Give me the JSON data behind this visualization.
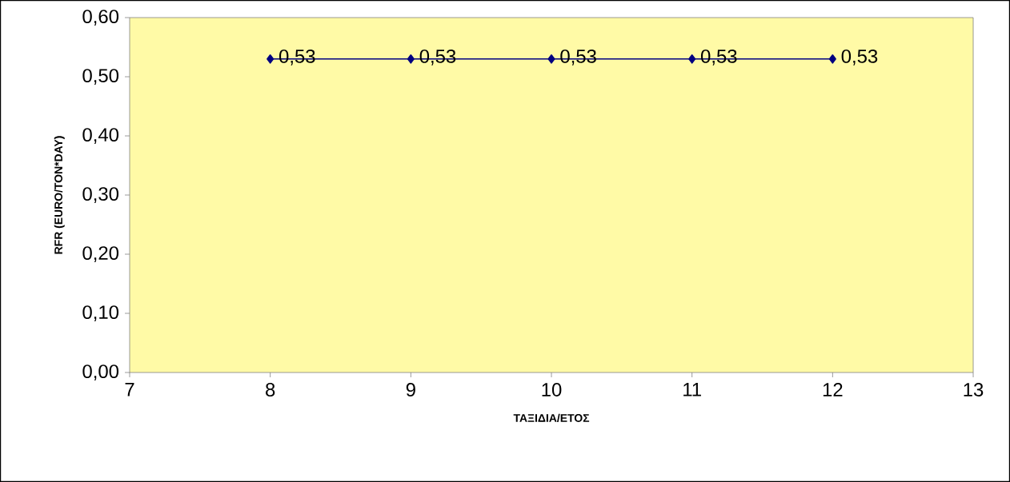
{
  "chart_data": {
    "type": "line",
    "xlabel": "ΤΑΞΙΔΙΑ/ΕΤΟΣ",
    "ylabel": "RFR (EURO/TON*DAY)",
    "x": [
      8,
      9,
      10,
      11,
      12
    ],
    "values": [
      0.53,
      0.53,
      0.53,
      0.53,
      0.53
    ],
    "value_labels": [
      "0,53",
      "0,53",
      "0,53",
      "0,53",
      "0,53"
    ],
    "color": "#000080",
    "marker": "diamond",
    "line_style": "solid",
    "grid": false,
    "xlim": [
      7,
      13
    ],
    "xticks": [
      7,
      8,
      9,
      10,
      11,
      12,
      13
    ],
    "ylim": [
      0,
      0.6
    ],
    "yticks": [
      {
        "value": 0,
        "label": "0,00"
      },
      {
        "value": 0.1,
        "label": "0,10"
      },
      {
        "value": 0.2,
        "label": "0,20"
      },
      {
        "value": 0.3,
        "label": "0,30"
      },
      {
        "value": 0.4,
        "label": "0,40"
      },
      {
        "value": 0.5,
        "label": "0,50"
      },
      {
        "value": 0.6,
        "label": "0,60"
      }
    ]
  }
}
